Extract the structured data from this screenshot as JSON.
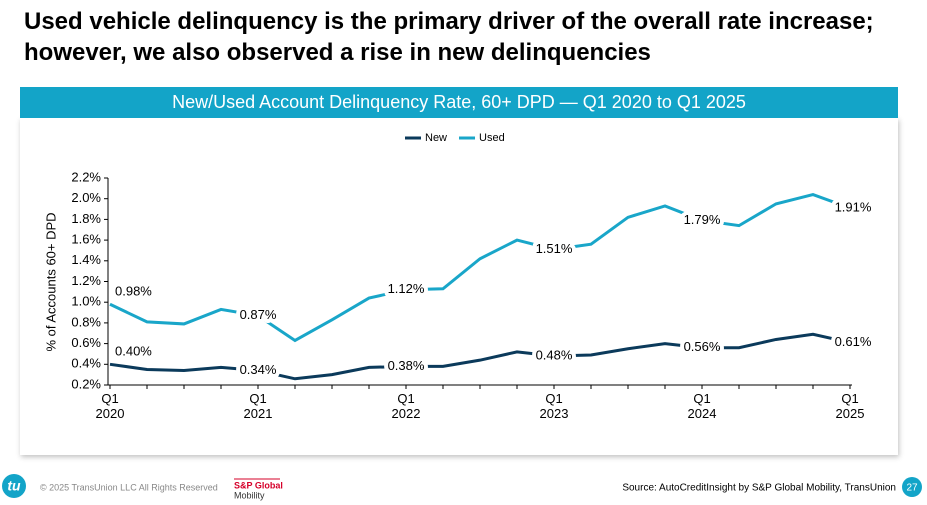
{
  "header": {
    "title": "Used vehicle delinquency is the primary driver of the overall rate increase; however, we also observed a rise in new delinquencies"
  },
  "chart_data": {
    "type": "line",
    "title": "New/Used Account Delinquency Rate, 60+ DPD — Q1 2020 to Q1 2025",
    "y_label": "% of Accounts 60+ DPD",
    "legend": "top",
    "categories": [
      "Q1\n2020",
      null,
      null,
      null,
      "Q1\n2021",
      null,
      null,
      null,
      "Q1\n2022",
      null,
      null,
      null,
      "Q1\n2023",
      null,
      null,
      null,
      "Q1\n2024",
      null,
      null,
      null,
      "Q1\n2025"
    ],
    "series": [
      {
        "name": "New",
        "color": "#0b3a5b",
        "values": [
          0.4,
          0.35,
          0.34,
          0.37,
          0.34,
          0.26,
          0.3,
          0.37,
          0.38,
          0.38,
          0.44,
          0.52,
          0.48,
          0.49,
          0.55,
          0.6,
          0.56,
          0.56,
          0.64,
          0.69,
          0.61
        ],
        "value_labels": [
          "0.40%",
          null,
          null,
          null,
          "0.34%",
          null,
          null,
          null,
          "0.38%",
          null,
          null,
          null,
          "0.48%",
          null,
          null,
          null,
          "0.56%",
          null,
          null,
          null,
          "0.61%"
        ]
      },
      {
        "name": "Used",
        "color": "#19a6c9",
        "values": [
          0.98,
          0.81,
          0.79,
          0.93,
          0.87,
          0.63,
          0.83,
          1.04,
          1.12,
          1.13,
          1.42,
          1.6,
          1.51,
          1.56,
          1.82,
          1.93,
          1.79,
          1.74,
          1.95,
          2.04,
          1.91
        ],
        "value_labels": [
          "0.98%",
          null,
          null,
          null,
          "0.87%",
          null,
          null,
          null,
          "1.12%",
          null,
          null,
          null,
          "1.51%",
          null,
          null,
          null,
          "1.79%",
          null,
          null,
          null,
          "1.91%"
        ]
      }
    ],
    "ylim": [
      0.2,
      2.2
    ],
    "yticks": [
      {
        "value": 0.2,
        "label": "0.2%"
      },
      {
        "value": 0.4,
        "label": "0.4%"
      },
      {
        "value": 0.6,
        "label": "0.6%"
      },
      {
        "value": 0.8,
        "label": "0.8%"
      },
      {
        "value": 1.0,
        "label": "1.0%"
      },
      {
        "value": 1.2,
        "label": "1.2%"
      },
      {
        "value": 1.4,
        "label": "1.4%"
      },
      {
        "value": 1.6,
        "label": "1.6%"
      },
      {
        "value": 1.8,
        "label": "1.8%"
      },
      {
        "value": 2.0,
        "label": "2.0%"
      },
      {
        "value": 2.2,
        "label": "2.2%"
      }
    ],
    "grid": false
  },
  "footer": {
    "logo": "tu",
    "copyright": "© 2025 TransUnion LLC All Rights Reserved",
    "partner_line1": "S&P Global",
    "partner_line2": "Mobility",
    "source": "Source: AutoCreditInsight by S&P Global Mobility, TransUnion",
    "page": "27"
  }
}
